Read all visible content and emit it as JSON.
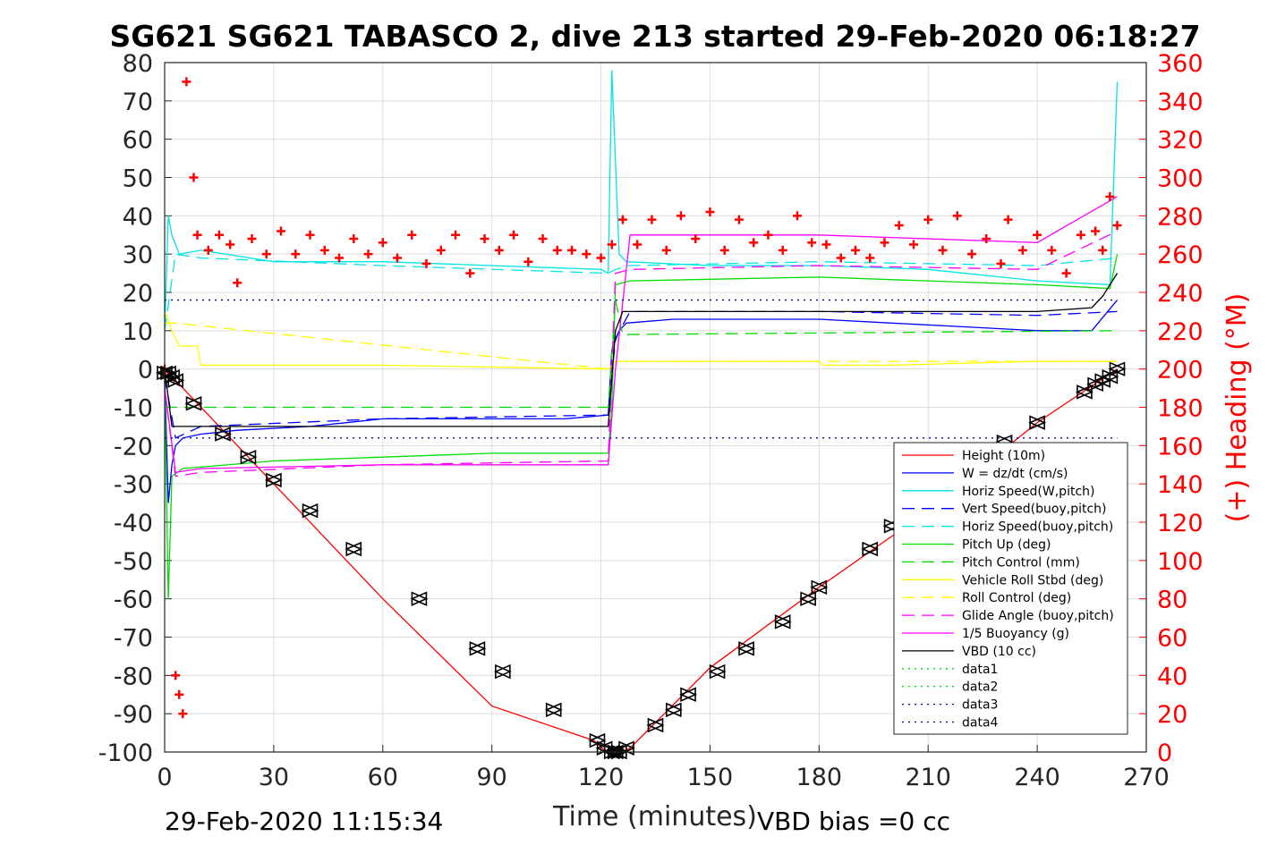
{
  "chart_data": {
    "type": "line",
    "title": "SG621 SG621 TABASCO 2, dive 213 started 29-Feb-2020 06:18:27",
    "xlabel": "Time (minutes)",
    "ylabel": "",
    "y2label": "(+) Heading (°M)",
    "xlim": [
      0,
      270
    ],
    "ylim": [
      -100,
      80
    ],
    "y2lim": [
      0,
      360
    ],
    "xticks": [
      "0",
      "30",
      "60",
      "90",
      "120",
      "150",
      "180",
      "210",
      "240",
      "270"
    ],
    "yticks": [
      "80",
      "70",
      "60",
      "50",
      "40",
      "30",
      "20",
      "10",
      "0",
      "-10",
      "-20",
      "-30",
      "-40",
      "-50",
      "-60",
      "-70",
      "-80",
      "-90",
      "-100"
    ],
    "y2ticks": [
      "360",
      "340",
      "320",
      "300",
      "280",
      "260",
      "240",
      "220",
      "200",
      "180",
      "160",
      "140",
      "120",
      "100",
      "80",
      "60",
      "40",
      "20",
      "0"
    ],
    "grid": true,
    "legend_position": "lower-right",
    "footer_left": "29-Feb-2020 11:15:34",
    "footer_right": "VBD bias =0 cc",
    "series": [
      {
        "name": "Height (10m)",
        "color": "#ff0000",
        "style": "solid",
        "x": [
          0,
          1,
          30,
          60,
          90,
          118,
          121,
          124,
          126,
          128,
          150,
          180,
          210,
          240,
          262
        ],
        "values": [
          -1,
          -1,
          -30,
          -60,
          -88,
          -97,
          -99.5,
          -100,
          -100,
          -99,
          -78,
          -57,
          -37,
          -14,
          0
        ]
      },
      {
        "name": "W = dz/dt (cm/s)",
        "color": "#0000ff",
        "style": "solid",
        "x": [
          0,
          1,
          2,
          3,
          5,
          10,
          20,
          40,
          60,
          90,
          110,
          122,
          123,
          125,
          127,
          140,
          160,
          180,
          200,
          220,
          240,
          255,
          262
        ],
        "values": [
          -2,
          -35,
          -25,
          -20,
          -18,
          -17,
          -16,
          -15,
          -13,
          -13,
          -13,
          -12,
          5,
          10,
          12,
          13,
          13,
          13,
          12,
          11,
          10,
          10,
          18
        ]
      },
      {
        "name": "Horiz Speed(W,pitch)",
        "color": "#00e5e5",
        "style": "solid",
        "x": [
          0,
          1,
          2,
          4,
          10,
          30,
          60,
          90,
          120,
          122,
          123,
          125,
          127,
          150,
          180,
          210,
          240,
          260,
          262
        ],
        "values": [
          10,
          40,
          35,
          30,
          31,
          28,
          28,
          27,
          26,
          25,
          78,
          30,
          28,
          27,
          27,
          26,
          23,
          22,
          75
        ]
      },
      {
        "name": "Vert Speed(buoy,pitch)",
        "color": "#0000ff",
        "style": "dashed",
        "x": [
          0,
          3,
          10,
          60,
          122,
          124,
          128,
          180,
          240,
          262
        ],
        "values": [
          -2,
          -18,
          -15,
          -13,
          -12,
          8,
          15,
          15,
          14,
          15
        ]
      },
      {
        "name": "Horiz Speed(buoy,pitch)",
        "color": "#00e5e5",
        "style": "dashed",
        "x": [
          0,
          3,
          10,
          60,
          122,
          124,
          128,
          180,
          240,
          262
        ],
        "values": [
          10,
          30,
          29,
          27,
          25,
          26,
          27,
          28,
          27,
          29
        ]
      },
      {
        "name": "Pitch Up (deg)",
        "color": "#00dd00",
        "style": "solid",
        "x": [
          0,
          1,
          2,
          5,
          30,
          60,
          90,
          122,
          123,
          124,
          128,
          180,
          240,
          260,
          262
        ],
        "values": [
          -5,
          -60,
          -28,
          -26,
          -24,
          -23,
          -22,
          -22,
          -10,
          22,
          23,
          24,
          22,
          21,
          30
        ]
      },
      {
        "name": "Pitch Control (mm)",
        "color": "#00dd00",
        "style": "dashed",
        "x": [
          0,
          3,
          122,
          124,
          126,
          262
        ],
        "values": [
          -10,
          -10,
          -10,
          18,
          9,
          10
        ]
      },
      {
        "name": "Vehicle Roll Stbd (deg)",
        "color": "#ffff00",
        "style": "solid",
        "x": [
          0,
          2,
          4,
          9,
          10,
          60,
          122,
          124,
          160,
          180,
          181,
          200,
          240,
          262
        ],
        "values": [
          15,
          10,
          6,
          6,
          1,
          1,
          0,
          2,
          2,
          2,
          1,
          1,
          2,
          2
        ]
      },
      {
        "name": "Roll Control (deg)",
        "color": "#ffff00",
        "style": "dashed",
        "x": [
          0,
          3,
          122,
          124,
          262
        ],
        "values": [
          12,
          12,
          0,
          2,
          2
        ]
      },
      {
        "name": "Glide Angle (buoy,pitch)",
        "color": "#ff00ff",
        "style": "dashed",
        "x": [
          0,
          3,
          10,
          60,
          122,
          124,
          128,
          180,
          240,
          262
        ],
        "values": [
          -5,
          -28,
          -27,
          -25,
          -24,
          25,
          26,
          27,
          26,
          36
        ]
      },
      {
        "name": "1/5 Buoyancy (g)",
        "color": "#ff00ff",
        "style": "solid",
        "x": [
          0,
          3,
          10,
          60,
          122,
          124,
          128,
          180,
          240,
          262
        ],
        "values": [
          -5,
          -27,
          -26,
          -25,
          -25,
          0,
          35,
          35,
          33,
          45
        ]
      },
      {
        "name": "VBD (10 cc)",
        "color": "#000000",
        "style": "solid",
        "x": [
          0,
          2,
          3,
          122,
          124,
          126,
          200,
          240,
          255,
          258,
          262
        ],
        "values": [
          0,
          -15,
          -15,
          -15,
          10,
          15,
          15,
          15,
          16,
          19,
          25
        ]
      },
      {
        "name": "data1",
        "color": "#00dd00",
        "style": "dotted",
        "x": [],
        "values": []
      },
      {
        "name": "data2",
        "color": "#00dd00",
        "style": "dotted",
        "x": [],
        "values": []
      },
      {
        "name": "data3",
        "color": "#0000aa",
        "style": "dotted",
        "x": [
          0,
          262
        ],
        "values": [
          18,
          18
        ]
      },
      {
        "name": "data4",
        "color": "#0000aa",
        "style": "dotted",
        "x": [
          0,
          262
        ],
        "values": [
          -18,
          -18
        ]
      }
    ],
    "heading": {
      "name": "(+) Heading",
      "color": "#ff0000",
      "marker": "+",
      "axis": "right",
      "x": [
        0,
        3,
        4,
        5,
        6,
        8,
        9,
        12,
        15,
        18,
        20,
        24,
        28,
        32,
        36,
        40,
        44,
        48,
        52,
        56,
        60,
        64,
        68,
        72,
        76,
        80,
        84,
        88,
        92,
        96,
        100,
        104,
        108,
        112,
        116,
        120,
        123,
        126,
        130,
        134,
        138,
        142,
        146,
        150,
        154,
        158,
        162,
        166,
        170,
        174,
        178,
        182,
        186,
        190,
        194,
        198,
        202,
        206,
        210,
        214,
        218,
        222,
        226,
        230,
        232,
        236,
        240,
        244,
        248,
        252,
        256,
        258,
        260,
        262
      ],
      "values": [
        200,
        40,
        30,
        20,
        350,
        300,
        270,
        262,
        270,
        265,
        245,
        268,
        260,
        272,
        260,
        270,
        262,
        258,
        268,
        260,
        266,
        258,
        270,
        255,
        262,
        270,
        250,
        268,
        262,
        270,
        256,
        268,
        262,
        262,
        260,
        258,
        265,
        278,
        265,
        278,
        262,
        280,
        268,
        282,
        262,
        278,
        266,
        270,
        262,
        280,
        266,
        265,
        258,
        262,
        258,
        266,
        275,
        265,
        278,
        262,
        280,
        260,
        268,
        255,
        278,
        262,
        270,
        262,
        250,
        270,
        272,
        262,
        290,
        275
      ]
    },
    "markers": {
      "name": "triangles",
      "color": "#000000",
      "x": [
        0,
        1,
        2,
        3,
        8,
        16,
        23,
        30,
        40,
        52,
        70,
        86,
        93,
        107,
        119,
        121,
        123,
        124,
        125,
        127,
        135,
        140,
        144,
        152,
        160,
        170,
        177,
        180,
        194,
        200,
        231,
        240,
        253,
        256,
        258,
        260,
        262
      ],
      "values": [
        -1,
        -1,
        -2,
        -3,
        -9,
        -17,
        -23,
        -29,
        -37,
        -47,
        -60,
        -73,
        -79,
        -89,
        -97,
        -99,
        -100,
        -100,
        -100,
        -99,
        -93,
        -89,
        -85,
        -79,
        -73,
        -66,
        -60,
        -57,
        -47,
        -41,
        -19,
        -14,
        -6,
        -4,
        -3,
        -2,
        0
      ]
    }
  }
}
